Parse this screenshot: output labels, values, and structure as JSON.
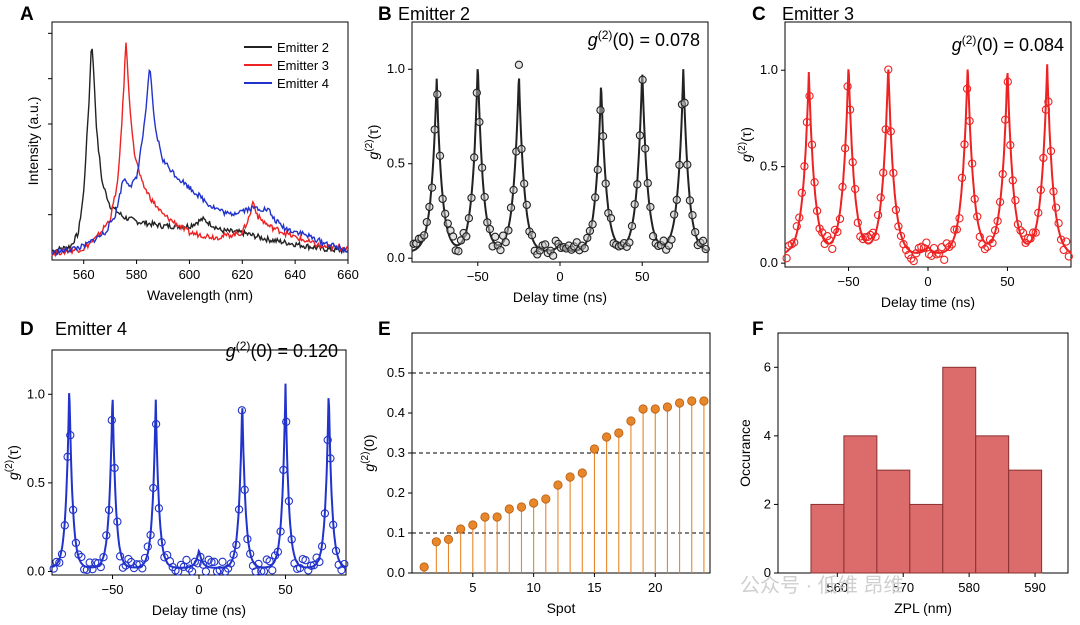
{
  "watermark": "公众号 · 低维 昂维",
  "colors": {
    "emitter2": "#222222",
    "emitter3": "#ee2222",
    "emitter4": "#2233cc",
    "spot": "#e8862a",
    "hist_fill": "#dc6b6b",
    "hist_edge": "#8a3030"
  },
  "chart_data": [
    {
      "panel": "A",
      "type": "line",
      "title": "",
      "xlabel": "Wavelength (nm)",
      "ylabel": "Intensity (a.u.)",
      "xlim": [
        548,
        660
      ],
      "xticks": [
        560,
        580,
        600,
        620,
        640,
        660
      ],
      "legend_position": "top-right",
      "series": [
        {
          "name": "Emitter 2",
          "color": "#222222",
          "x": [
            548,
            555,
            558,
            560,
            562,
            563,
            564,
            565,
            567,
            570,
            575,
            580,
            590,
            600,
            605,
            608,
            612,
            620,
            630,
            640,
            650,
            660
          ],
          "y": [
            0.04,
            0.06,
            0.12,
            0.3,
            0.7,
            0.98,
            0.78,
            0.55,
            0.34,
            0.24,
            0.19,
            0.17,
            0.15,
            0.15,
            0.18,
            0.16,
            0.13,
            0.12,
            0.09,
            0.07,
            0.05,
            0.04
          ]
        },
        {
          "name": "Emitter 3",
          "color": "#ee2222",
          "x": [
            548,
            560,
            565,
            570,
            573,
            575,
            576,
            577,
            579,
            582,
            586,
            590,
            600,
            610,
            620,
            623,
            624,
            626,
            630,
            640,
            650,
            660
          ],
          "y": [
            0.03,
            0.05,
            0.1,
            0.18,
            0.35,
            0.72,
            0.97,
            0.75,
            0.48,
            0.34,
            0.26,
            0.2,
            0.12,
            0.1,
            0.12,
            0.2,
            0.26,
            0.19,
            0.15,
            0.1,
            0.06,
            0.05
          ]
        },
        {
          "name": "Emitter 4",
          "color": "#2233cc",
          "x": [
            548,
            560,
            568,
            572,
            575,
            578,
            580,
            583,
            585,
            587,
            590,
            595,
            600,
            608,
            615,
            620,
            625,
            630,
            632,
            636,
            642,
            650,
            660
          ],
          "y": [
            0.03,
            0.06,
            0.12,
            0.2,
            0.36,
            0.33,
            0.36,
            0.6,
            0.85,
            0.58,
            0.44,
            0.37,
            0.32,
            0.24,
            0.2,
            0.22,
            0.23,
            0.22,
            0.18,
            0.14,
            0.12,
            0.08,
            0.04
          ]
        }
      ]
    },
    {
      "panel": "B",
      "type": "scatter",
      "title": "Emitter 2",
      "annotation": "g(2)(0) = 0.078",
      "xlabel": "Delay time (ns)",
      "ylabel": "g(2)(τ)",
      "color": "#222222",
      "xlim": [
        -90,
        90
      ],
      "ylim": [
        -0.02,
        1.25
      ],
      "xticks": [
        -50,
        0,
        50
      ],
      "yticks": [
        0.0,
        0.5,
        1.0
      ],
      "center_value": 0.078,
      "peak_width_ns": 3.2,
      "baseline": 0.03,
      "peaks": [
        {
          "x": -75,
          "h": 0.95
        },
        {
          "x": -50,
          "h": 1.03
        },
        {
          "x": -25,
          "h": 0.98
        },
        {
          "x": 25,
          "h": 0.93
        },
        {
          "x": 50,
          "h": 1.0
        },
        {
          "x": 75,
          "h": 1.0
        }
      ]
    },
    {
      "panel": "C",
      "type": "scatter",
      "title": "Emitter 3",
      "annotation": "g(2)(0) = 0.084",
      "xlabel": "Delay time (ns)",
      "ylabel": "g(2)(τ)",
      "color": "#ee2222",
      "xlim": [
        -90,
        90
      ],
      "ylim": [
        -0.02,
        1.25
      ],
      "xticks": [
        -50,
        0,
        50
      ],
      "yticks": [
        0.0,
        0.5,
        1.0
      ],
      "center_value": 0.084,
      "peak_width_ns": 3.6,
      "baseline": 0.04,
      "peaks": [
        {
          "x": -75,
          "h": 0.99
        },
        {
          "x": -50,
          "h": 1.03
        },
        {
          "x": -25,
          "h": 1.03
        },
        {
          "x": 25,
          "h": 1.03
        },
        {
          "x": 50,
          "h": 1.01
        },
        {
          "x": 75,
          "h": 1.03
        }
      ]
    },
    {
      "panel": "D",
      "type": "scatter",
      "title": "Emitter 4",
      "annotation": "g(2)(0) = 0.120",
      "xlabel": "Delay time (ns)",
      "ylabel": "g(2)(τ)",
      "color": "#2233cc",
      "xlim": [
        -85,
        85
      ],
      "ylim": [
        -0.02,
        1.25
      ],
      "xticks": [
        -50,
        0,
        50
      ],
      "yticks": [
        0.0,
        0.5,
        1.0
      ],
      "center_value": 0.12,
      "peak_width_ns": 1.9,
      "baseline": 0.02,
      "peaks": [
        {
          "x": -75,
          "h": 1.06
        },
        {
          "x": -50,
          "h": 1.02
        },
        {
          "x": -25,
          "h": 0.97
        },
        {
          "x": 25,
          "h": 0.97
        },
        {
          "x": 50,
          "h": 1.06
        },
        {
          "x": 75,
          "h": 1.03
        }
      ]
    },
    {
      "panel": "E",
      "type": "stem",
      "title": "",
      "xlabel": "Spot",
      "ylabel": "g(2)(0)",
      "color": "#e8862a",
      "xlim": [
        0,
        24.5
      ],
      "ylim": [
        0,
        0.6
      ],
      "xticks": [
        5,
        10,
        15,
        20
      ],
      "yticks": [
        0.0,
        0.1,
        0.2,
        0.3,
        0.4,
        0.5
      ],
      "reference_lines": [
        0.1,
        0.3,
        0.5
      ],
      "x": [
        1,
        2,
        3,
        4,
        5,
        6,
        7,
        8,
        9,
        10,
        11,
        12,
        13,
        14,
        15,
        16,
        17,
        18,
        19,
        20,
        21,
        22,
        23,
        24
      ],
      "y": [
        0.015,
        0.078,
        0.084,
        0.11,
        0.12,
        0.14,
        0.14,
        0.16,
        0.165,
        0.175,
        0.185,
        0.22,
        0.24,
        0.25,
        0.31,
        0.34,
        0.35,
        0.38,
        0.41,
        0.41,
        0.415,
        0.425,
        0.43,
        0.43
      ]
    },
    {
      "panel": "F",
      "type": "bar",
      "title": "",
      "xlabel": "ZPL (nm)",
      "ylabel": "Occurance",
      "xlim": [
        551,
        595
      ],
      "ylim": [
        0,
        7
      ],
      "xticks": [
        560,
        570,
        580,
        590
      ],
      "yticks": [
        0,
        2,
        4,
        6
      ],
      "bin_edges": [
        556,
        561,
        566,
        571,
        576,
        581,
        586,
        591
      ],
      "counts": [
        2,
        4,
        3,
        2,
        6,
        4,
        3
      ]
    }
  ]
}
